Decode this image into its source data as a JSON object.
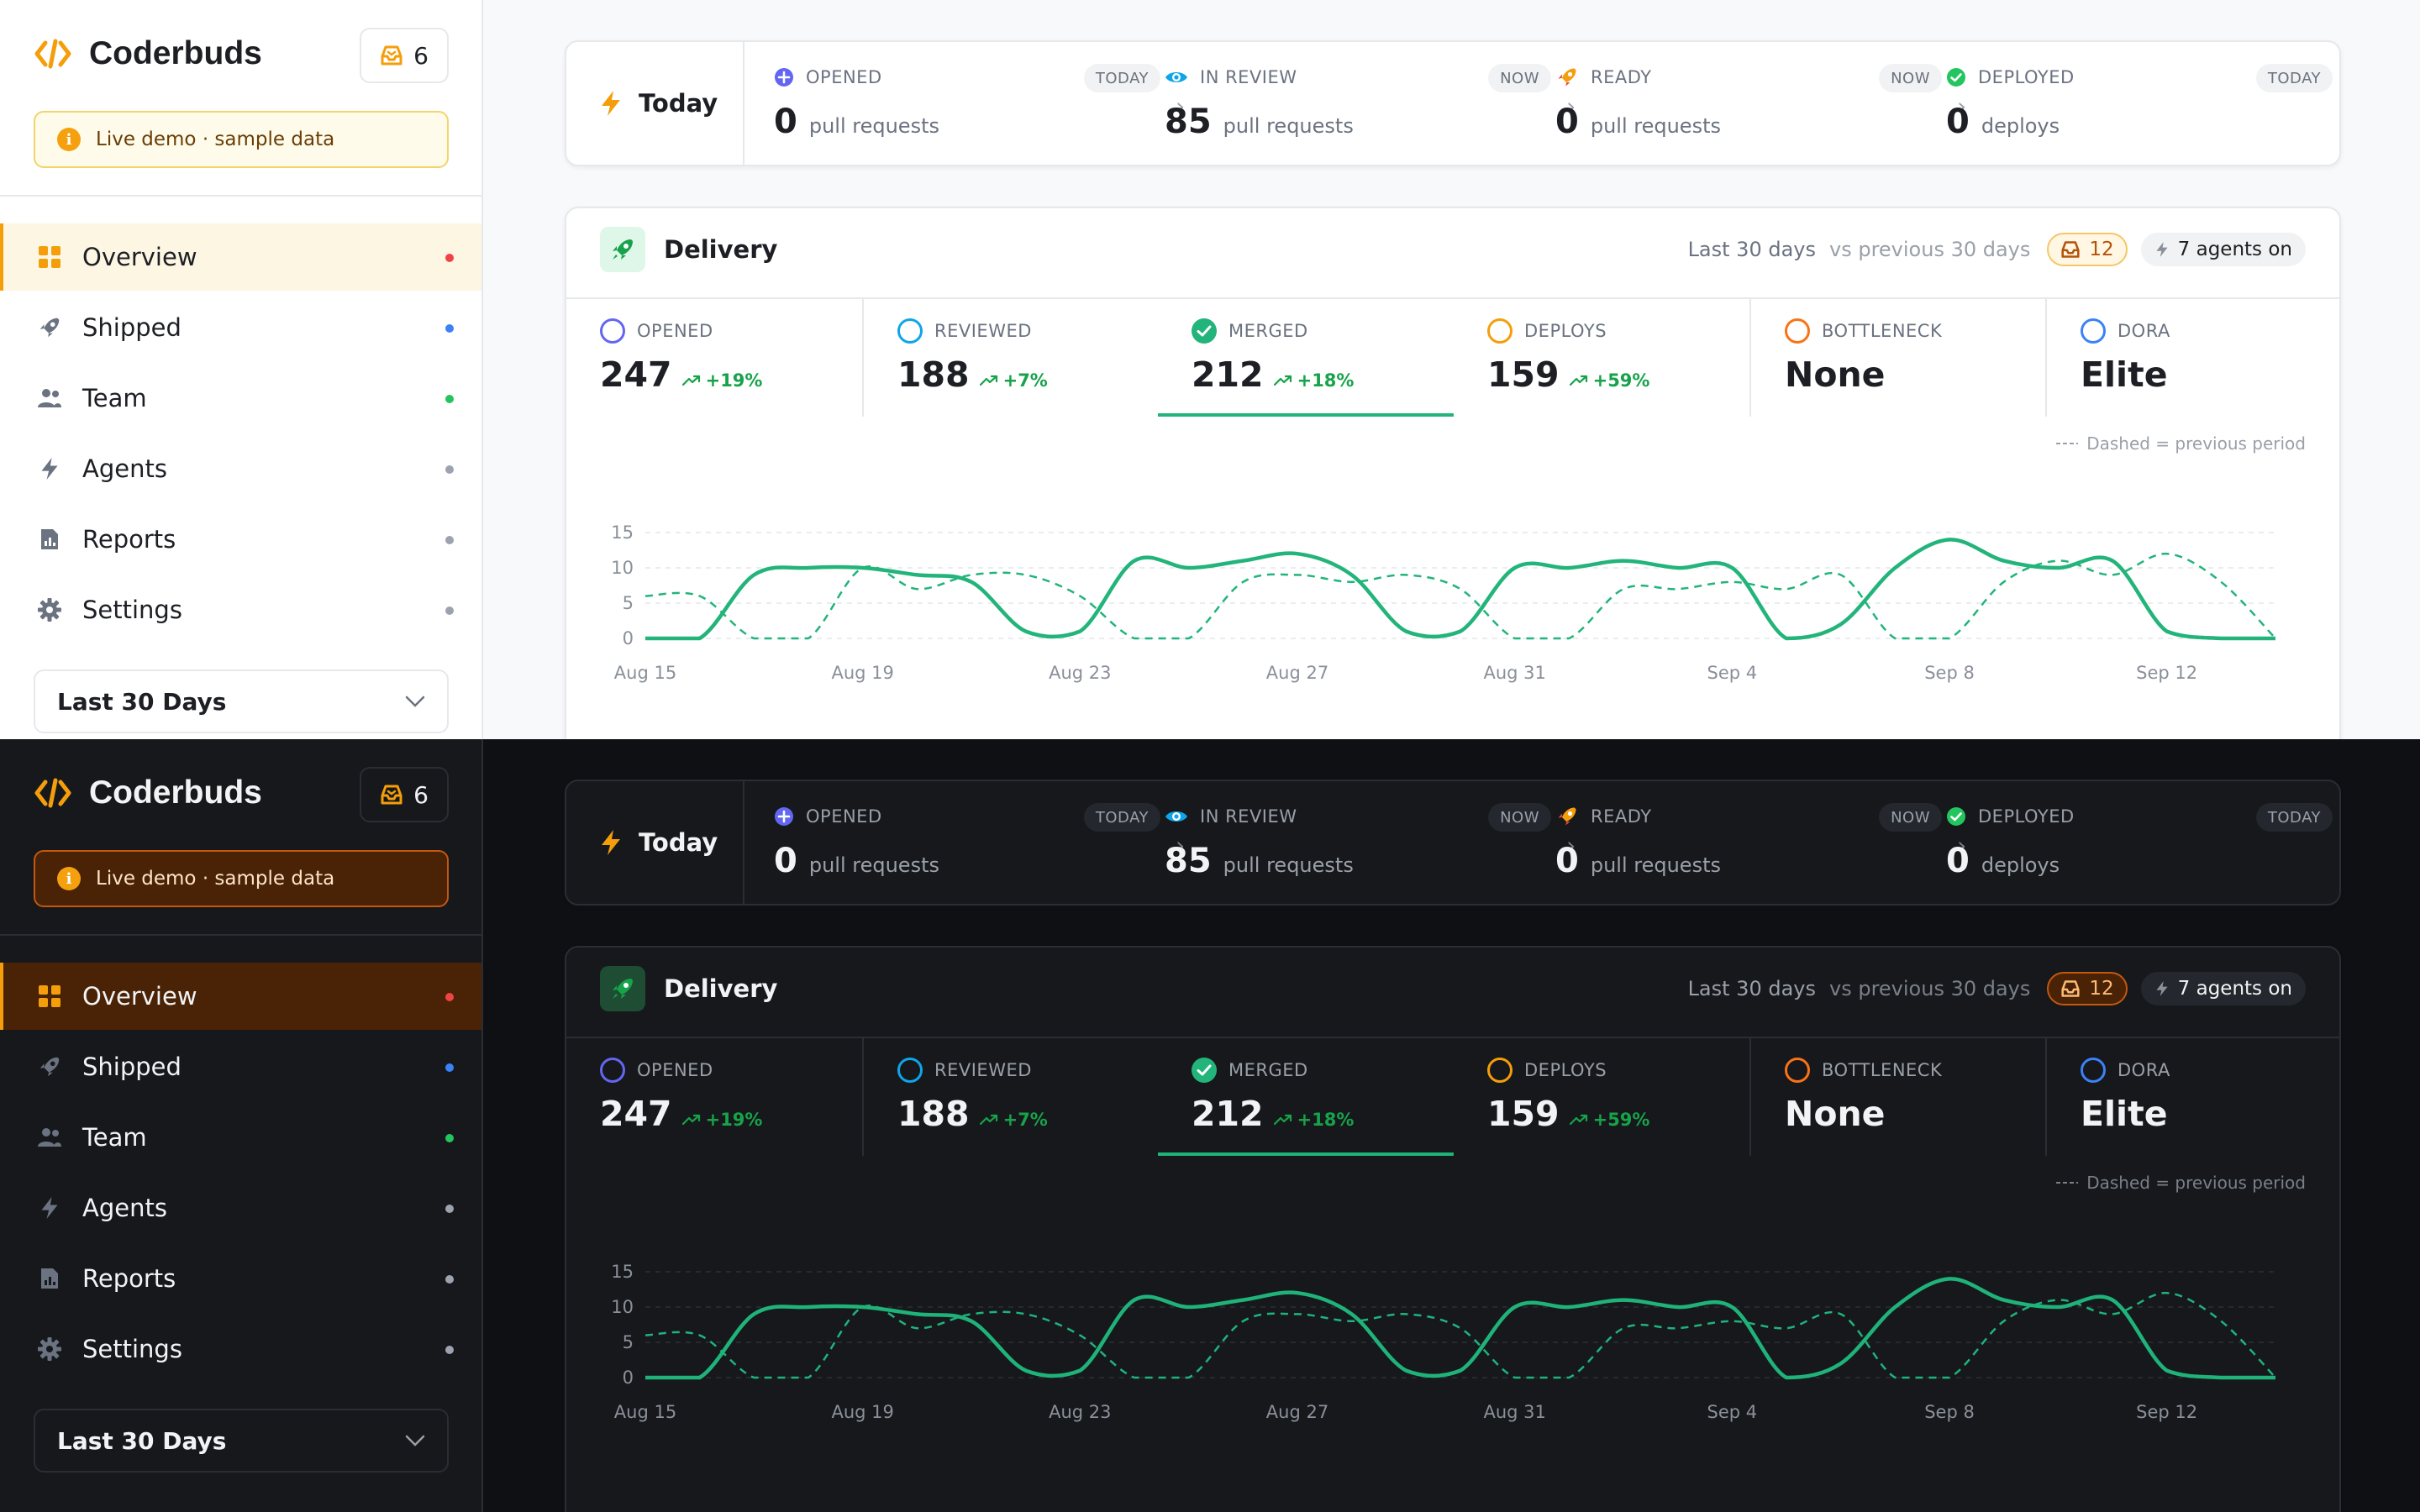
{
  "app": {
    "name": "Coderbuds",
    "inbox_count": "6",
    "demo_banner": "Live demo · sample data"
  },
  "nav": [
    {
      "label": "Overview",
      "dot_color": "#ef4444",
      "icon": "grid-icon"
    },
    {
      "label": "Shipped",
      "dot_color": "#3b82f6",
      "icon": "rocket-icon"
    },
    {
      "label": "Team",
      "dot_color": "#22c55e",
      "icon": "team-icon"
    },
    {
      "label": "Agents",
      "dot_color": "#9ca3af",
      "icon": "bolt-icon"
    },
    {
      "label": "Reports",
      "dot_color": "#9ca3af",
      "icon": "report-icon"
    },
    {
      "label": "Settings",
      "dot_color": "#9ca3af",
      "icon": "gear-icon"
    }
  ],
  "range": {
    "selected": "Last 30 Days"
  },
  "today": {
    "label": "Today",
    "stages": [
      {
        "title": "OPENED",
        "pill": "TODAY",
        "value": "0",
        "unit": "pull requests",
        "icon": "plus-circle-icon",
        "color": "#6366f1"
      },
      {
        "title": "IN REVIEW",
        "pill": "NOW",
        "value": "85",
        "unit": "pull requests",
        "icon": "eye-icon",
        "color": "#0ea5e9"
      },
      {
        "title": "READY",
        "pill": "NOW",
        "value": "0",
        "unit": "pull requests",
        "icon": "rocket-icon",
        "color": "#f59e0b"
      },
      {
        "title": "DEPLOYED",
        "pill": "TODAY",
        "value": "0",
        "unit": "deploys",
        "icon": "check-circle-icon",
        "color": "#22c55e"
      }
    ]
  },
  "delivery": {
    "title": "Delivery",
    "period": "Last 30 days",
    "compare": "vs previous 30 days",
    "alerts_count": "12",
    "agents": "7 agents on",
    "legend_note": "Dashed = previous period",
    "metrics": [
      {
        "title": "OPENED",
        "value": "247",
        "delta": "+19%",
        "ring": "#6366f1"
      },
      {
        "title": "REVIEWED",
        "value": "188",
        "delta": "+7%",
        "ring": "#0ea5e9"
      },
      {
        "title": "MERGED",
        "value": "212",
        "delta": "+18%",
        "ring": "#22b47a",
        "active": true
      },
      {
        "title": "DEPLOYS",
        "value": "159",
        "delta": "+59%",
        "ring": "#f59e0b"
      },
      {
        "title": "BOTTLENECK",
        "value": "None",
        "delta": "",
        "ring": "#f97316"
      },
      {
        "title": "DORA",
        "value": "Elite",
        "delta": "",
        "ring": "#3b82f6"
      }
    ]
  },
  "chart_data": {
    "type": "line",
    "x_ticks": [
      "Aug 15",
      "Aug 19",
      "Aug 23",
      "Aug 27",
      "Aug 31",
      "Sep 4",
      "Sep 8",
      "Sep 12"
    ],
    "ylim": [
      0,
      15
    ],
    "y_ticks": [
      0,
      5,
      10,
      15
    ],
    "grid": true,
    "series": [
      {
        "style": "solid",
        "color": "#22b47a",
        "values": [
          0,
          0,
          9,
          10,
          10,
          9,
          8,
          1,
          1,
          11,
          10,
          11,
          12,
          9,
          1,
          1,
          10,
          10,
          11,
          10,
          10,
          0,
          2,
          10,
          14,
          11,
          10,
          11,
          1,
          0,
          0
        ]
      },
      {
        "style": "dashed",
        "color": "#22b47a",
        "values": [
          6,
          6,
          0,
          0,
          10,
          7,
          9,
          9,
          6,
          0,
          0,
          8,
          9,
          8,
          9,
          7,
          0,
          0,
          7,
          7,
          8,
          7,
          9,
          0,
          0,
          8,
          11,
          9,
          12,
          8,
          0
        ]
      }
    ]
  }
}
